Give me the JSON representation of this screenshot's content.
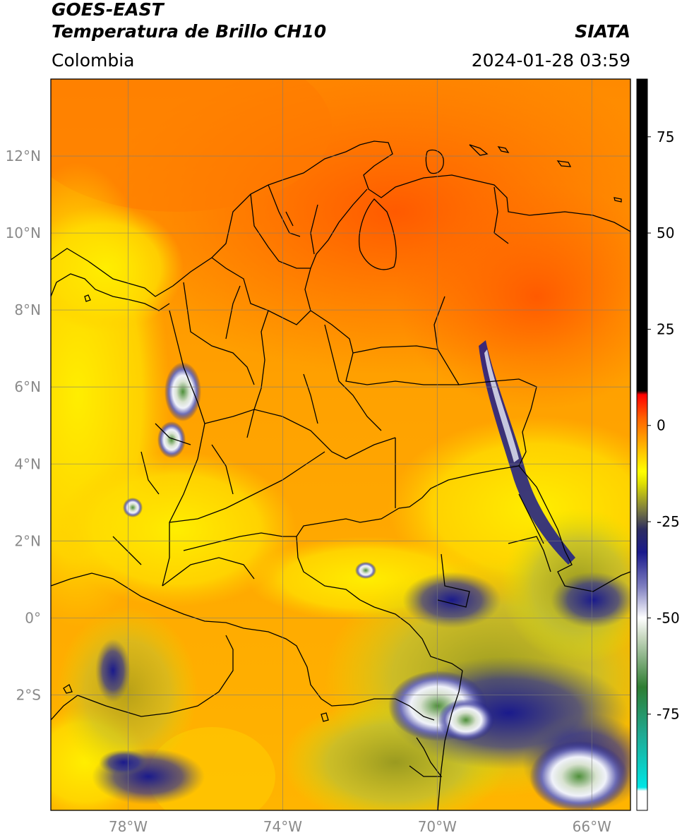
{
  "header": {
    "satellite": "GOES-EAST",
    "product": "Temperatura de Brillo CH10",
    "region": "Colombia",
    "agency": "SIATA",
    "timestamp": "2024-01-28 03:59"
  },
  "map": {
    "lon_range": [
      -80,
      -65
    ],
    "lat_range": [
      -5,
      14
    ],
    "lon_ticks": [
      {
        "value": -78,
        "label": "78°W"
      },
      {
        "value": -74,
        "label": "74°W"
      },
      {
        "value": -70,
        "label": "70°W"
      },
      {
        "value": -66,
        "label": "66°W"
      }
    ],
    "lat_ticks": [
      {
        "value": 12,
        "label": "12°N"
      },
      {
        "value": 10,
        "label": "10°N"
      },
      {
        "value": 8,
        "label": "8°N"
      },
      {
        "value": 6,
        "label": "6°N"
      },
      {
        "value": 4,
        "label": "4°N"
      },
      {
        "value": 2,
        "label": "2°N"
      },
      {
        "value": 0,
        "label": "0°"
      },
      {
        "value": -2,
        "label": "2°S"
      }
    ]
  },
  "colorbar": {
    "range": [
      -100,
      90
    ],
    "ticks": [
      {
        "value": 75,
        "label": "75"
      },
      {
        "value": 50,
        "label": "50"
      },
      {
        "value": 25,
        "label": "25"
      },
      {
        "value": 0,
        "label": "0"
      },
      {
        "value": -25,
        "label": "-25"
      },
      {
        "value": -50,
        "label": "-50"
      },
      {
        "value": -75,
        "label": "-75"
      }
    ],
    "stops": [
      {
        "value": -100,
        "color": "#ffffff"
      },
      {
        "value": -95,
        "color": "#ffffff"
      },
      {
        "value": -94,
        "color": "#00e5e5"
      },
      {
        "value": -80,
        "color": "#20a890"
      },
      {
        "value": -68,
        "color": "#2e7d32"
      },
      {
        "value": -55,
        "color": "#c8d8c0"
      },
      {
        "value": -50,
        "color": "#ffffff"
      },
      {
        "value": -42,
        "color": "#8080c0"
      },
      {
        "value": -33,
        "color": "#1a1a8c"
      },
      {
        "value": -27,
        "color": "#2c2c60"
      },
      {
        "value": -22,
        "color": "#7a7a40"
      },
      {
        "value": -15,
        "color": "#e0e000"
      },
      {
        "value": -12,
        "color": "#ffff00"
      },
      {
        "value": -5,
        "color": "#ffb000"
      },
      {
        "value": 2,
        "color": "#ff6000"
      },
      {
        "value": 8,
        "color": "#ff0000"
      },
      {
        "value": 9,
        "color": "#000000"
      },
      {
        "value": 90,
        "color": "#000000"
      }
    ]
  },
  "colors": {
    "cold_orange": "#ff7a00",
    "mid_orange": "#ffa500",
    "yellow": "#ffee00",
    "olive": "#b8b820",
    "navy": "#1a1a8c",
    "cloud_white": "#e8eef8",
    "cloud_green": "#4e8f3a"
  }
}
